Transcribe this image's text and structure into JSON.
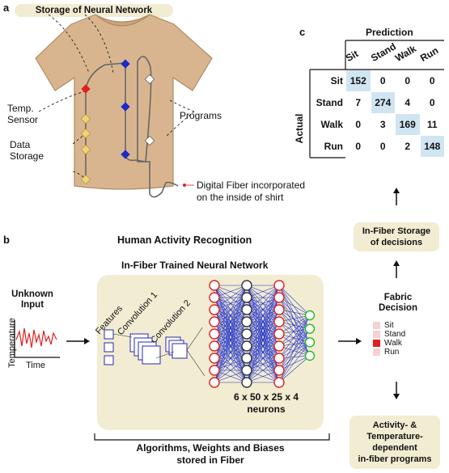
{
  "panel_a": {
    "letter": "a",
    "title": "Storage of Neural Network",
    "temp_sensor": [
      "Temp.",
      "Sensor"
    ],
    "data_storage": [
      "Data",
      "Storage"
    ],
    "programs": "Programs",
    "digital_fiber": [
      "Digital Fiber incorporated",
      "on the inside of shirt"
    ],
    "colors": {
      "shirt": "#d9b58f",
      "sensor": "#e02020",
      "storage": "#f0d27a",
      "network": "#1a2cc8",
      "program": "#ffffff",
      "fiber": "#666666"
    }
  },
  "panel_b": {
    "letter": "b",
    "title": "Human Activity Recognition",
    "nn_title": "In-Fiber Trained Neural Network",
    "unknown_input": [
      "Unknown",
      "Input"
    ],
    "temperature_label": "Temperature",
    "time_label": "Time",
    "features": "Features",
    "conv1": "Convolution 1",
    "conv2": "Convolution 2",
    "neurons": [
      "6 x 50 x 25 x 4",
      "neurons"
    ],
    "algorithms": [
      "Algorithms, Weights and Biases",
      "stored in Fiber"
    ],
    "fabric_decision": [
      "Fabric",
      "Decision"
    ],
    "decision_options": [
      {
        "label": "Sit",
        "color": "#f6d0d3"
      },
      {
        "label": "Stand",
        "color": "#f6d0d3"
      },
      {
        "label": "Walk",
        "color": "#e02020"
      },
      {
        "label": "Run",
        "color": "#f6d0d3"
      }
    ],
    "storage_box": [
      "In-Fiber Storage",
      "of decisions"
    ],
    "programs_box": [
      "Activity- &",
      "Temperature-",
      "dependent",
      "in-fiber programs"
    ],
    "colors": {
      "input_signal": "#e02020",
      "layer1": "#e02020",
      "layer2": "#333333",
      "layer3": "#e02020",
      "output": "#22bb22",
      "connections": "#1a2cc8"
    }
  },
  "panel_c": {
    "letter": "c",
    "prediction_label": "Prediction",
    "actual_label": "Actual",
    "classes": [
      "Sit",
      "Stand",
      "Walk",
      "Run"
    ],
    "matrix": [
      [
        152,
        0,
        0,
        0
      ],
      [
        7,
        274,
        4,
        0
      ],
      [
        0,
        3,
        169,
        11
      ],
      [
        0,
        0,
        2,
        148
      ]
    ]
  }
}
